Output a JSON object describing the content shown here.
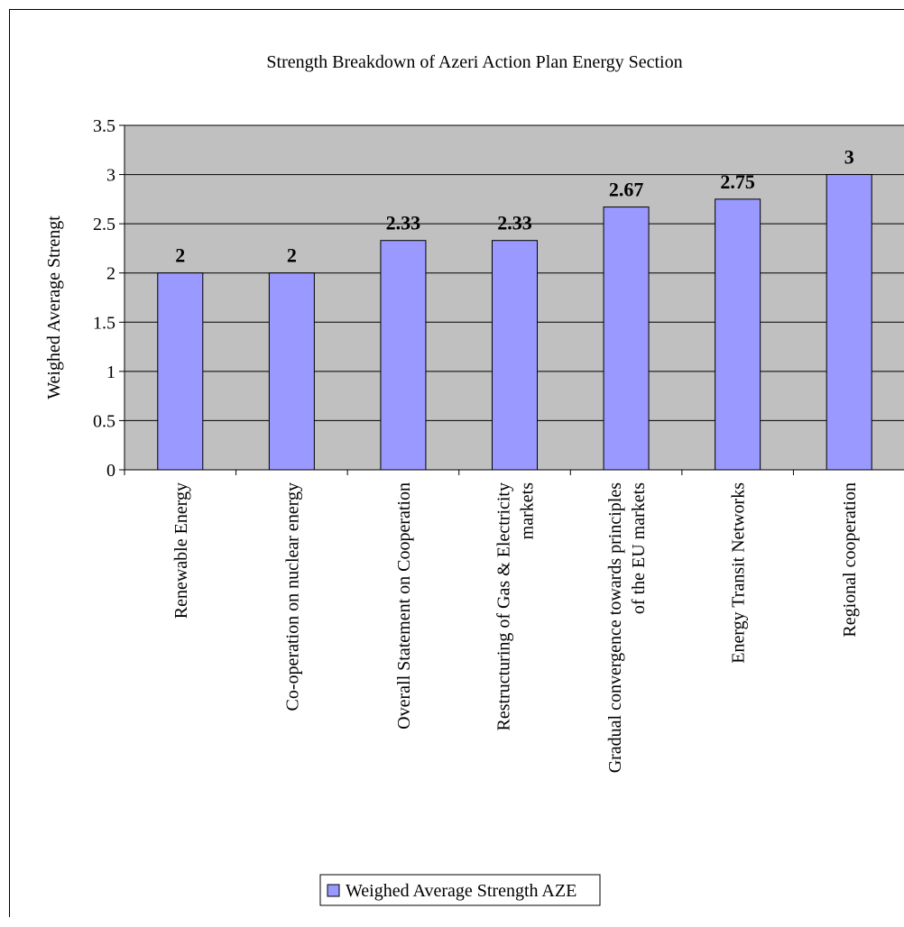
{
  "chart_data": {
    "type": "bar",
    "title": "Strength Breakdown of Azeri Action Plan Energy Section",
    "ylabel": "Weighed Average Strengt",
    "xlabel": "",
    "categories": [
      [
        "Renewable Energy"
      ],
      [
        "Co-operation on nuclear energy"
      ],
      [
        "Overall Statement on Cooperation"
      ],
      [
        "Restructuring of Gas & Electricity",
        "markets"
      ],
      [
        "Gradual convergence towards principles",
        "of the EU markets"
      ],
      [
        "Energy Transit Networks"
      ],
      [
        "Regional cooperation"
      ]
    ],
    "series": [
      {
        "name": "Weighed Average Strength AZE",
        "values": [
          2,
          2,
          2.33,
          2.33,
          2.67,
          2.75,
          3
        ],
        "labels": [
          "2",
          "2",
          "2.33",
          "2.33",
          "2.67",
          "2.75",
          "3"
        ]
      }
    ],
    "ylim": [
      0,
      3.5
    ],
    "yticks": [
      "0",
      "0.5",
      "1",
      "1.5",
      "2",
      "2.5",
      "3",
      "3.5"
    ],
    "grid": true,
    "legend": "bottom",
    "colors": {
      "bar": "#9999ff",
      "plot_background": "#c0c0c0",
      "gridline": "#000000"
    }
  }
}
